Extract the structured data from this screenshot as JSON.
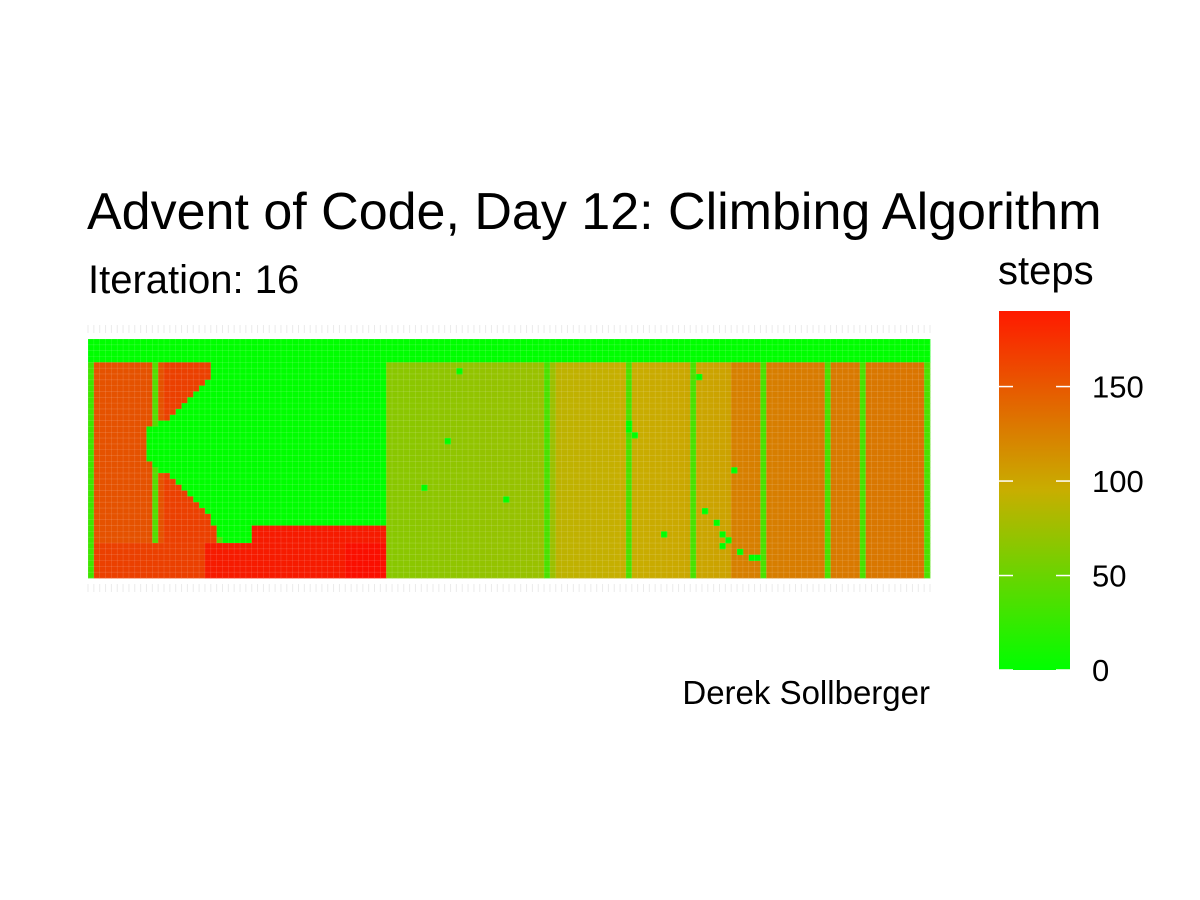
{
  "chart_data": {
    "type": "heatmap",
    "title": "Advent of Code, Day 12: Climbing Algorithm",
    "subtitle": "Iteration: 16",
    "caption": "Derek Sollberger",
    "color_scale": {
      "title": "steps",
      "low_color": "#00ff00",
      "high_color": "#ff0000",
      "domain": [
        0,
        190
      ],
      "breaks": [
        0,
        50,
        100,
        150
      ],
      "break_labels": [
        "0",
        "50",
        "100",
        "150"
      ]
    },
    "grid": {
      "columns": 144,
      "rows": 41,
      "grid_lines": true
    },
    "regions": [
      {
        "region": "top band",
        "steps": 0
      },
      {
        "region": "left block (around columns 1-26)",
        "steps": 155
      },
      {
        "region": "green pocket (columns ~10-51)",
        "steps": 0
      },
      {
        "region": "bottom-left strip (columns ~20-51)",
        "steps": 175
      },
      {
        "region": "bottom block (columns ~44-51)",
        "steps": 182
      },
      {
        "region": "middle section (columns 51-80)",
        "steps": 65
      },
      {
        "region": "center-right section (columns 80-110)",
        "steps": 90
      },
      {
        "region": "right section (columns 110-144)",
        "steps": 120
      }
    ]
  }
}
